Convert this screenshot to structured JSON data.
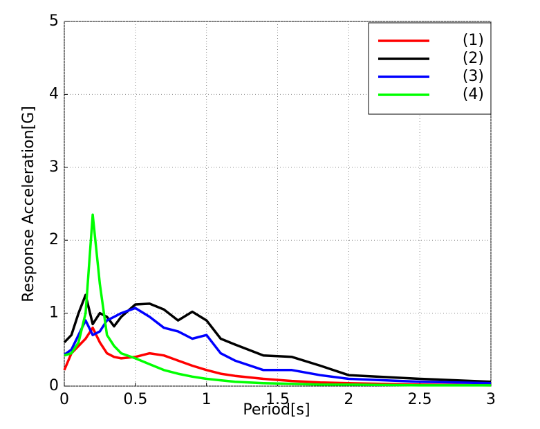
{
  "chart_data": {
    "type": "line",
    "x_label": "Period[s]",
    "y_label": "Response Acceleration[G]",
    "x": [
      0,
      0.05,
      0.1,
      0.15,
      0.2,
      0.25,
      0.3,
      0.35,
      0.4,
      0.5,
      0.6,
      0.7,
      0.8,
      0.9,
      1.0,
      1.1,
      1.2,
      1.4,
      1.6,
      1.8,
      2.0,
      2.5,
      3.0
    ],
    "series": [
      {
        "name": "(1)",
        "color": "#ff0000",
        "values": [
          0.22,
          0.45,
          0.55,
          0.65,
          0.8,
          0.6,
          0.45,
          0.4,
          0.38,
          0.4,
          0.45,
          0.42,
          0.35,
          0.28,
          0.22,
          0.17,
          0.14,
          0.1,
          0.07,
          0.05,
          0.04,
          0.02,
          0.01
        ]
      },
      {
        "name": "(2)",
        "color": "#000000",
        "values": [
          0.6,
          0.7,
          1.0,
          1.25,
          0.85,
          1.0,
          0.95,
          0.82,
          0.95,
          1.12,
          1.13,
          1.05,
          0.9,
          1.02,
          0.9,
          0.65,
          0.57,
          0.42,
          0.4,
          0.28,
          0.15,
          0.1,
          0.06
        ]
      },
      {
        "name": "(3)",
        "color": "#0000ff",
        "values": [
          0.43,
          0.5,
          0.7,
          0.9,
          0.7,
          0.75,
          0.9,
          0.95,
          1.0,
          1.07,
          0.95,
          0.8,
          0.75,
          0.65,
          0.7,
          0.45,
          0.35,
          0.22,
          0.22,
          0.15,
          0.1,
          0.06,
          0.04
        ]
      },
      {
        "name": "(4)",
        "color": "#00ff00",
        "values": [
          0.42,
          0.45,
          0.6,
          1.0,
          2.35,
          1.4,
          0.7,
          0.55,
          0.45,
          0.38,
          0.3,
          0.22,
          0.17,
          0.13,
          0.1,
          0.08,
          0.06,
          0.04,
          0.03,
          0.02,
          0.02,
          0.01,
          0.01
        ]
      }
    ],
    "xlim": [
      0,
      3
    ],
    "xticks": [
      0,
      0.5,
      1,
      1.5,
      2,
      2.5,
      3
    ],
    "ylim": [
      0,
      5
    ],
    "yticks": [
      0,
      1,
      2,
      3,
      4,
      5
    ],
    "grid": true,
    "legend": "upper right"
  }
}
